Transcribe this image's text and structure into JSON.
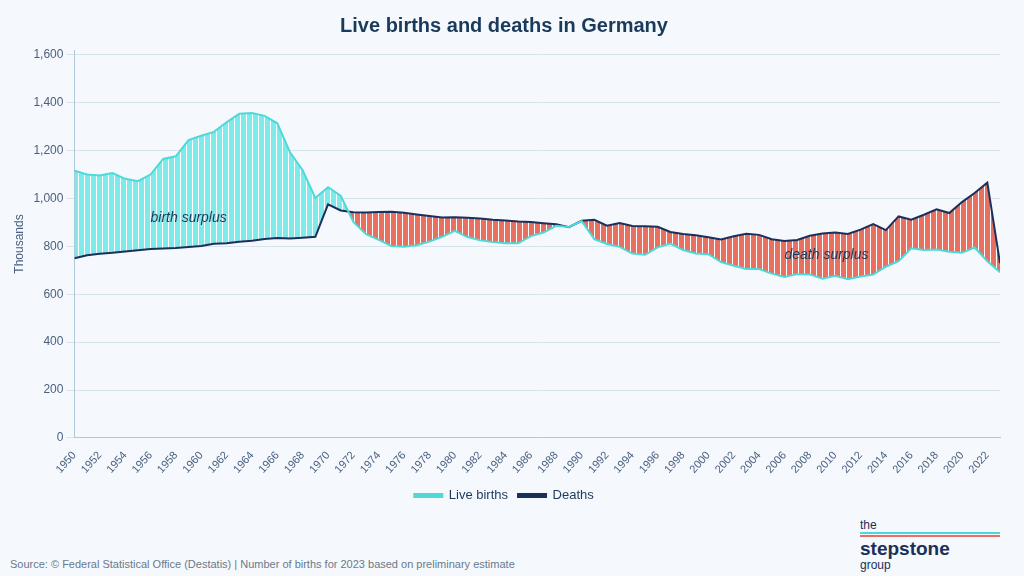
{
  "chart_data": {
    "type": "line",
    "title": "Live births and deaths in Germany",
    "y_label": "Thousands",
    "source": "Source: © Federal Statistical Office (Destatis) | Number of births for 2023 based on preliminary estimate",
    "logo": [
      "the",
      "stepstone",
      "group"
    ],
    "x": [
      1950,
      1951,
      1952,
      1953,
      1954,
      1955,
      1956,
      1957,
      1958,
      1959,
      1960,
      1961,
      1962,
      1963,
      1964,
      1965,
      1966,
      1967,
      1968,
      1969,
      1970,
      1971,
      1972,
      1973,
      1974,
      1975,
      1976,
      1977,
      1978,
      1979,
      1980,
      1981,
      1982,
      1983,
      1984,
      1985,
      1986,
      1987,
      1988,
      1989,
      1990,
      1991,
      1992,
      1993,
      1994,
      1995,
      1996,
      1997,
      1998,
      1999,
      2000,
      2001,
      2002,
      2003,
      2004,
      2005,
      2006,
      2007,
      2008,
      2009,
      2010,
      2011,
      2012,
      2013,
      2014,
      2015,
      2016,
      2017,
      2018,
      2019,
      2020,
      2021,
      2022,
      2023
    ],
    "series": [
      {
        "name": "Live births",
        "color": "#4dd9d9",
        "values": [
          1116,
          1100,
          1096,
          1106,
          1082,
          1072,
          1100,
          1165,
          1176,
          1244,
          1262,
          1278,
          1318,
          1354,
          1357,
          1345,
          1314,
          1193,
          1118,
          1002,
          1047,
          1012,
          902,
          851,
          827,
          801,
          798,
          805,
          820,
          840,
          865,
          839,
          825,
          818,
          813,
          813,
          843,
          858,
          886,
          881,
          906,
          830,
          810,
          798,
          770,
          765,
          796,
          812,
          785,
          770,
          767,
          734,
          719,
          706,
          705,
          686,
          672,
          684,
          683,
          665,
          677,
          663,
          674,
          682,
          715,
          738,
          792,
          785,
          787,
          778,
          773,
          795,
          738,
          692
        ]
      },
      {
        "name": "Deaths",
        "color": "#1a2f5a",
        "values": [
          750,
          763,
          769,
          773,
          779,
          784,
          789,
          791,
          793,
          797,
          802,
          811,
          813,
          819,
          823,
          831,
          835,
          833,
          836,
          840,
          975,
          950,
          942,
          941,
          943,
          945,
          940,
          933,
          927,
          921,
          922,
          919,
          916,
          911,
          908,
          904,
          902,
          897,
          892,
          880,
          907,
          911,
          886,
          897,
          885,
          884,
          882,
          860,
          852,
          846,
          838,
          829,
          842,
          853,
          848,
          830,
          822,
          827,
          844,
          854,
          858,
          852,
          870,
          893,
          868,
          925,
          911,
          932,
          955,
          939,
          985,
          1023,
          1066,
          730
        ]
      }
    ],
    "annotations": [
      {
        "text": "birth surplus",
        "x": 1956,
        "y": 920
      },
      {
        "text": "death surplus",
        "x": 2006,
        "y": 762
      }
    ],
    "xlim": [
      1950,
      2023
    ],
    "xticks": [
      1950,
      1952,
      1954,
      1956,
      1958,
      1960,
      1962,
      1964,
      1966,
      1968,
      1970,
      1972,
      1974,
      1976,
      1978,
      1980,
      1982,
      1984,
      1986,
      1988,
      1990,
      1992,
      1994,
      1996,
      1998,
      2000,
      2002,
      2004,
      2006,
      2008,
      2010,
      2012,
      2014,
      2016,
      2018,
      2020,
      2022
    ],
    "ylim": [
      0,
      1620
    ],
    "yticks": [
      0,
      200,
      400,
      600,
      800,
      {
        "value": 1000,
        "label": "1,000"
      },
      {
        "value": 1200,
        "label": "1,200"
      },
      {
        "value": 1400,
        "label": "1,400"
      },
      {
        "value": 1600,
        "label": "1,600"
      }
    ],
    "grid": "y",
    "legend": "bottom"
  }
}
